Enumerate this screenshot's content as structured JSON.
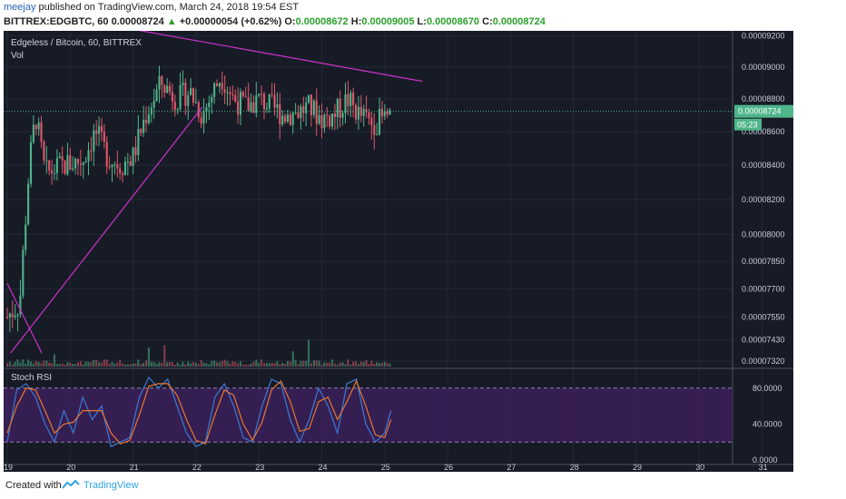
{
  "header": {
    "user": "meejay",
    "published_text": "published on TradingView.com, March 24, 2018 19:54 EST",
    "symbol_line": "BITTREX:EDGBTC, 60",
    "last_price": "0.00008724",
    "change": "+0.00000054 (+0.62%)",
    "o_label": "O:",
    "o_value": "0.00008672",
    "h_label": "H:",
    "h_value": "0.00009005",
    "l_label": "L:",
    "l_value": "0.00008670",
    "c_label": "C:",
    "c_value": "0.00008724"
  },
  "pane": {
    "title": "Edgeless / Bitcoin, 60, BITTREX",
    "vol_label": "Vol",
    "stoch_label": "Stoch RSI"
  },
  "price_badge": {
    "value": "0.00008724",
    "countdown": "05:23"
  },
  "footer": {
    "created_with": "Created with",
    "brand": "TradingView"
  },
  "colors": {
    "background": "#171b26",
    "up": "#4fb58a",
    "down": "#e0586a",
    "trendline": "#cc33cc",
    "k_line": "#3a7bd5",
    "d_line": "#e8772e",
    "rsi_band": "#3b1f5a"
  },
  "chart_data": [
    {
      "type": "candlestick",
      "title": "Edgeless / Bitcoin, 60, BITTREX",
      "x_tick_labels": [
        "19",
        "20",
        "21",
        "22",
        "23",
        "24",
        "25",
        "26",
        "27",
        "28",
        "29",
        "30",
        "31"
      ],
      "y_tick_labels": [
        "0.00009200",
        "0.00009000",
        "0.00008800",
        "0.00008600",
        "0.00008400",
        "0.00008200",
        "0.00008000",
        "0.00007850",
        "0.00007700",
        "0.00007550",
        "0.00007430",
        "0.00007320"
      ],
      "y_scale": "log",
      "ylim": [
        7.31e-05,
        9.22e-05
      ],
      "last_price": 8.724e-05,
      "approximate_path_close": [
        [
          19.0,
          7.55e-05
        ],
        [
          19.2,
          7.63e-05
        ],
        [
          19.35,
          8.4e-05
        ],
        [
          19.45,
          8.7e-05
        ],
        [
          19.6,
          8.35e-05
        ],
        [
          19.9,
          8.4e-05
        ],
        [
          20.2,
          8.43e-05
        ],
        [
          20.4,
          8.6e-05
        ],
        [
          20.6,
          8.45e-05
        ],
        [
          20.8,
          8.4e-05
        ],
        [
          21.0,
          8.45e-05
        ],
        [
          21.2,
          8.7e-05
        ],
        [
          21.45,
          8.9e-05
        ],
        [
          21.7,
          8.8e-05
        ],
        [
          21.9,
          8.85e-05
        ],
        [
          22.1,
          8.7e-05
        ],
        [
          22.4,
          8.95e-05
        ],
        [
          22.6,
          8.8e-05
        ],
        [
          22.8,
          8.75e-05
        ],
        [
          23.0,
          8.8e-05
        ],
        [
          23.2,
          8.75e-05
        ],
        [
          23.4,
          8.7e-05
        ],
        [
          23.6,
          8.72e-05
        ],
        [
          23.8,
          8.75e-05
        ],
        [
          24.0,
          8.68e-05
        ],
        [
          24.2,
          8.7e-05
        ],
        [
          24.4,
          8.8e-05
        ],
        [
          24.6,
          8.7e-05
        ],
        [
          24.8,
          8.65e-05
        ],
        [
          25.0,
          8.68e-05
        ],
        [
          25.1,
          8.72e-05
        ]
      ],
      "trendlines": [
        {
          "from": [
            19.05,
            7.36e-05
          ],
          "to": [
            22.1,
            8.75e-05
          ]
        },
        {
          "from": [
            19.4,
            9.36e-05
          ],
          "to": [
            25.6,
            8.91e-05
          ]
        },
        {
          "from": [
            19.0,
            7.73e-05
          ],
          "to": [
            19.55,
            7.36e-05
          ]
        }
      ]
    },
    {
      "type": "line",
      "title": "Stoch RSI",
      "y_tick_labels": [
        "80.0000",
        "40.0000",
        "0.0000"
      ],
      "ylim": [
        -5,
        100
      ],
      "bands": [
        20,
        80
      ],
      "series": [
        {
          "values_x": [
            19.0,
            19.15,
            19.3,
            19.45,
            19.6,
            19.75,
            19.9,
            20.05,
            20.2,
            20.35,
            20.5,
            20.65,
            20.8,
            20.95,
            21.1,
            21.25,
            21.4,
            21.55,
            21.7,
            21.85,
            22.0,
            22.15,
            22.3,
            22.45,
            22.6,
            22.75,
            22.9,
            23.05,
            23.2,
            23.35,
            23.5,
            23.65,
            23.8,
            23.95,
            24.1,
            24.25,
            24.4,
            24.55,
            24.7,
            24.85,
            25.0,
            25.1
          ],
          "values_y": [
            20,
            78,
            85,
            70,
            40,
            20,
            55,
            30,
            70,
            45,
            60,
            15,
            20,
            25,
            70,
            92,
            80,
            90,
            60,
            30,
            15,
            20,
            70,
            85,
            60,
            25,
            20,
            60,
            90,
            85,
            45,
            20,
            45,
            80,
            60,
            30,
            85,
            90,
            40,
            20,
            30,
            55
          ]
        },
        {
          "values_x": [
            19.0,
            19.15,
            19.3,
            19.45,
            19.6,
            19.75,
            19.9,
            20.05,
            20.2,
            20.35,
            20.5,
            20.65,
            20.8,
            20.95,
            21.1,
            21.25,
            21.4,
            21.55,
            21.7,
            21.85,
            22.0,
            22.15,
            22.3,
            22.45,
            22.6,
            22.75,
            22.9,
            23.05,
            23.2,
            23.35,
            23.5,
            23.65,
            23.8,
            23.95,
            24.1,
            24.25,
            24.4,
            24.55,
            24.7,
            24.85,
            25.0,
            25.1
          ],
          "values_y": [
            30,
            60,
            80,
            78,
            55,
            30,
            40,
            42,
            55,
            55,
            55,
            30,
            18,
            22,
            50,
            82,
            85,
            85,
            72,
            45,
            22,
            18,
            50,
            78,
            72,
            40,
            22,
            42,
            78,
            88,
            65,
            32,
            35,
            65,
            70,
            45,
            65,
            88,
            60,
            28,
            25,
            45
          ]
        }
      ]
    }
  ]
}
